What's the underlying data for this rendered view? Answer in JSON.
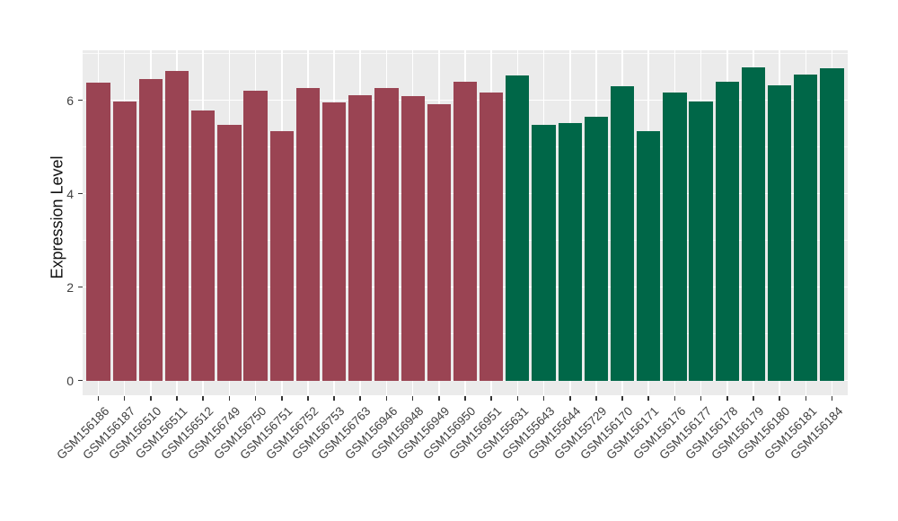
{
  "chart_data": {
    "type": "bar",
    "title": "",
    "xlabel": "",
    "ylabel": "Expression Level",
    "ylim": [
      0,
      7.07
    ],
    "yticks": [
      {
        "value": 0,
        "label": "0"
      },
      {
        "value": 2,
        "label": "2"
      },
      {
        "value": 4,
        "label": "4"
      },
      {
        "value": 6,
        "label": "6"
      }
    ],
    "yminor": [
      1,
      3,
      5,
      7
    ],
    "grid": "on",
    "legend_position": "none",
    "panel_bg": "#EBEBEB",
    "grid_color": "#FFFFFF",
    "axis_text_color": "#404040",
    "groups": [
      {
        "name": "group-1",
        "color": "#9A4453"
      },
      {
        "name": "group-2",
        "color": "#006748"
      }
    ],
    "bars": [
      {
        "label": "GSM156186",
        "value": 6.37,
        "group": 0
      },
      {
        "label": "GSM156187",
        "value": 5.97,
        "group": 0
      },
      {
        "label": "GSM156510",
        "value": 6.45,
        "group": 0
      },
      {
        "label": "GSM156511",
        "value": 6.62,
        "group": 0
      },
      {
        "label": "GSM156512",
        "value": 5.79,
        "group": 0
      },
      {
        "label": "GSM156749",
        "value": 5.47,
        "group": 0
      },
      {
        "label": "GSM156750",
        "value": 6.21,
        "group": 0
      },
      {
        "label": "GSM156751",
        "value": 5.33,
        "group": 0
      },
      {
        "label": "GSM156752",
        "value": 6.27,
        "group": 0
      },
      {
        "label": "GSM156753",
        "value": 5.96,
        "group": 0
      },
      {
        "label": "GSM156763",
        "value": 6.1,
        "group": 0
      },
      {
        "label": "GSM156946",
        "value": 6.26,
        "group": 0
      },
      {
        "label": "GSM156948",
        "value": 6.08,
        "group": 0
      },
      {
        "label": "GSM156949",
        "value": 5.92,
        "group": 0
      },
      {
        "label": "GSM156950",
        "value": 6.4,
        "group": 0
      },
      {
        "label": "GSM156951",
        "value": 6.17,
        "group": 0
      },
      {
        "label": "GSM155631",
        "value": 6.53,
        "group": 1
      },
      {
        "label": "GSM155643",
        "value": 5.48,
        "group": 1
      },
      {
        "label": "GSM155644",
        "value": 5.51,
        "group": 1
      },
      {
        "label": "GSM155729",
        "value": 5.65,
        "group": 1
      },
      {
        "label": "GSM156170",
        "value": 6.31,
        "group": 1
      },
      {
        "label": "GSM156171",
        "value": 5.33,
        "group": 1
      },
      {
        "label": "GSM156176",
        "value": 6.17,
        "group": 1
      },
      {
        "label": "GSM156177",
        "value": 5.98,
        "group": 1
      },
      {
        "label": "GSM156178",
        "value": 6.4,
        "group": 1
      },
      {
        "label": "GSM156179",
        "value": 6.71,
        "group": 1
      },
      {
        "label": "GSM156180",
        "value": 6.32,
        "group": 1
      },
      {
        "label": "GSM156181",
        "value": 6.56,
        "group": 1
      },
      {
        "label": "GSM156184",
        "value": 6.69,
        "group": 1
      }
    ]
  }
}
